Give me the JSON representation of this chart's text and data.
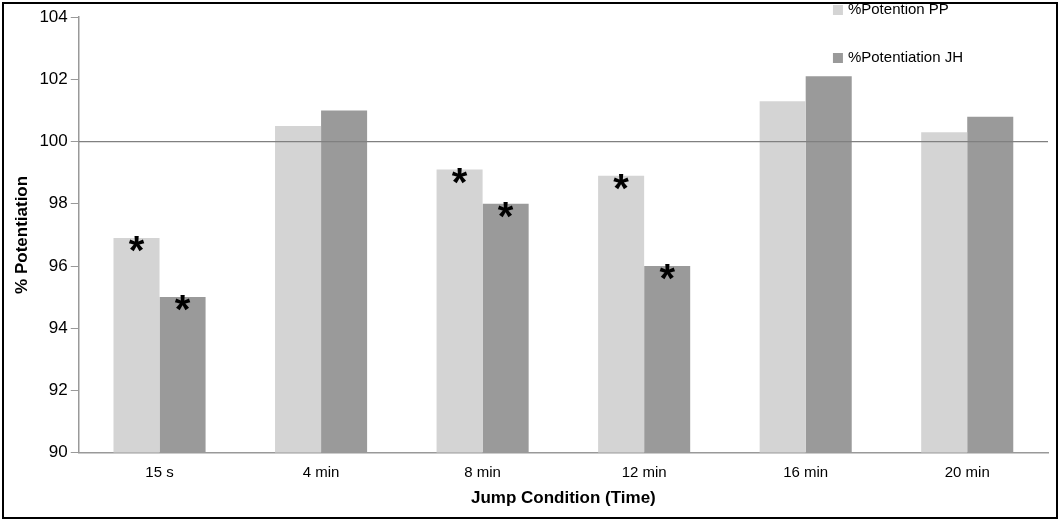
{
  "chart_data": {
    "type": "bar",
    "xlabel": "Jump Condition (Time)",
    "ylabel": "% Potentiation",
    "categories": [
      "15 s",
      "4 min",
      "8 min",
      "12 min",
      "16 min",
      "20 min"
    ],
    "series": [
      {
        "name": "%Potention PP",
        "color": "#d4d4d4",
        "values": [
          96.9,
          100.5,
          99.1,
          98.9,
          101.3,
          100.3
        ]
      },
      {
        "name": "%Potentiation JH",
        "color": "#9a9a9a",
        "values": [
          95.0,
          101.0,
          98.0,
          96.0,
          102.1,
          100.8
        ]
      }
    ],
    "ylim": [
      90,
      104
    ],
    "yticks": [
      90,
      92,
      94,
      96,
      98,
      100,
      102,
      104
    ],
    "ref_lines": [
      {
        "axis": "y",
        "value": 100,
        "color": "#808080"
      }
    ],
    "annotations": [
      {
        "text": "*",
        "x": "15 s",
        "y": 96.9
      },
      {
        "text": "*",
        "x": "15 s",
        "y": 95.0
      },
      {
        "text": "*",
        "x": "8 min",
        "y": 99.1
      },
      {
        "text": "*",
        "x": "8 min",
        "y": 98.0
      },
      {
        "text": "*",
        "x": "12 min",
        "y": 98.9
      },
      {
        "text": "*",
        "x": "12 min",
        "y": 96.0
      }
    ],
    "legend": "top right",
    "grid": false
  }
}
